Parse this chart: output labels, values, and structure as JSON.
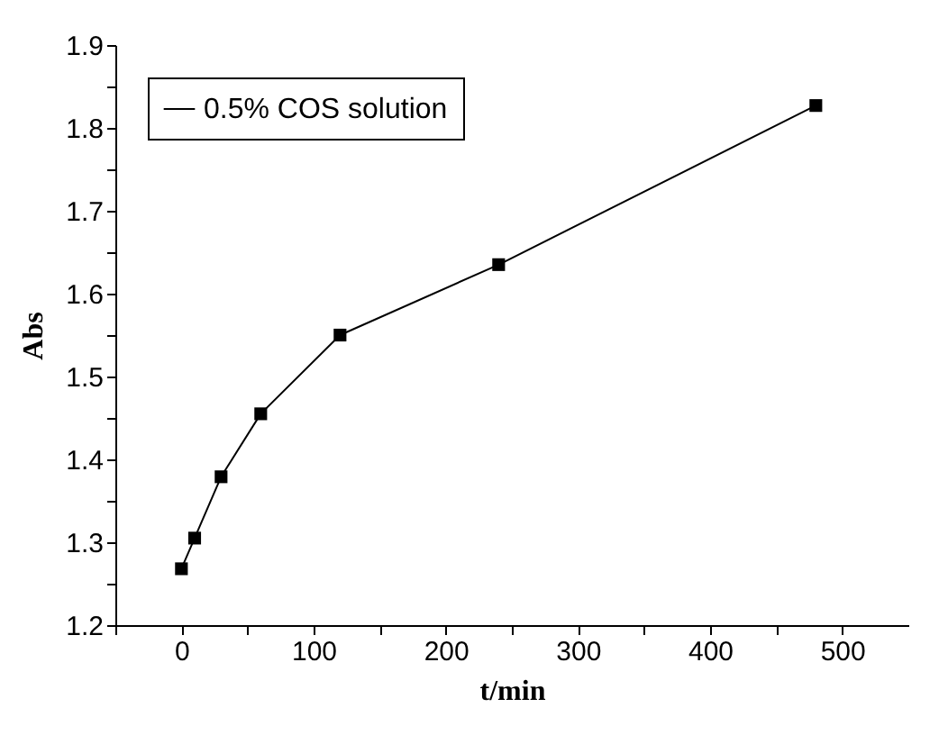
{
  "chart_data": {
    "type": "line",
    "xlabel": "t/min",
    "ylabel": "Abs",
    "x": [
      0,
      10,
      30,
      60,
      120,
      240,
      480
    ],
    "series": [
      {
        "name": "0.5% COS solution",
        "color": "#000000",
        "values": [
          1.268,
          1.305,
          1.379,
          1.455,
          1.55,
          1.635,
          1.827
        ]
      }
    ],
    "xlim": [
      -50,
      550
    ],
    "xticks": [
      {
        "value": -50,
        "label": null
      },
      0,
      {
        "value": 50,
        "label": null
      },
      100,
      {
        "value": 150,
        "label": null
      },
      200,
      {
        "value": 250,
        "label": null
      },
      300,
      {
        "value": 350,
        "label": null
      },
      400,
      {
        "value": 450,
        "label": null
      },
      500
    ],
    "ylim": [
      1.2,
      1.9
    ],
    "yticks": [
      1.2,
      {
        "value": 1.25,
        "label": null
      },
      1.3,
      {
        "value": 1.35,
        "label": null
      },
      1.4,
      {
        "value": 1.45,
        "label": null
      },
      1.5,
      {
        "value": 1.55,
        "label": null
      },
      1.6,
      {
        "value": 1.65,
        "label": null
      },
      1.7,
      {
        "value": 1.75,
        "label": null
      },
      1.8,
      {
        "value": 1.85,
        "label": null
      },
      1.9
    ],
    "marker": "square",
    "line_style": "solid",
    "grid": false,
    "legend": "top left"
  }
}
